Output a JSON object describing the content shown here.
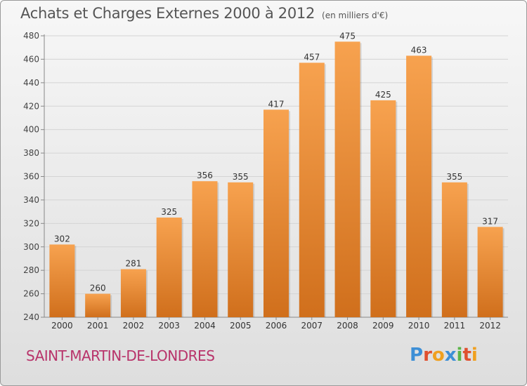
{
  "title": "Achats et Charges Externes 2000 à 2012",
  "unit": "(en milliers d'€)",
  "commune": "SAINT-MARTIN-DE-LONDRES",
  "brand": {
    "letters": [
      "P",
      "r",
      "o",
      "x",
      "i",
      "t",
      "i"
    ],
    "colors": [
      "#3d8fd6",
      "#e0502f",
      "#f0a020",
      "#3d8fd6",
      "#5ab548",
      "#e0502f",
      "#f0a020"
    ]
  },
  "colors": {
    "bar": "#f0913a",
    "bar_dark": "#d06f1c",
    "accent": "#b8336a"
  },
  "chart_data": {
    "type": "bar",
    "categories": [
      "2000",
      "2001",
      "2002",
      "2003",
      "2004",
      "2005",
      "2006",
      "2007",
      "2008",
      "2009",
      "2010",
      "2011",
      "2012"
    ],
    "values": [
      302,
      260,
      281,
      325,
      356,
      355,
      417,
      457,
      475,
      425,
      463,
      355,
      317
    ],
    "ylim": [
      240,
      480
    ],
    "yticks": [
      240,
      260,
      280,
      300,
      320,
      340,
      360,
      380,
      400,
      420,
      440,
      460,
      480
    ],
    "grid": true
  }
}
